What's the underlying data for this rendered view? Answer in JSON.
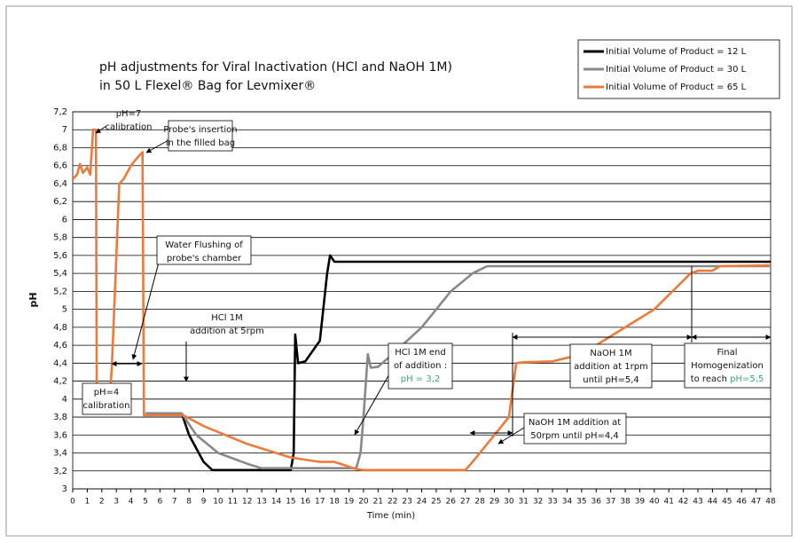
{
  "chart_data": {
    "type": "line",
    "title": [
      "pH adjustments for Viral Inactivation (HCl and NaOH 1M)",
      "in 50 L Flexel® Bag for Levmixer®"
    ],
    "x_label": "Time (min)",
    "y_label": "pH",
    "xlim": [
      0,
      48
    ],
    "xticks": [
      0,
      1,
      2,
      3,
      4,
      5,
      6,
      7,
      8,
      9,
      10,
      11,
      12,
      13,
      14,
      15,
      16,
      17,
      18,
      19,
      20,
      21,
      22,
      23,
      24,
      25,
      26,
      27,
      28,
      29,
      30,
      31,
      32,
      33,
      34,
      35,
      36,
      37,
      38,
      39,
      40,
      41,
      42,
      43,
      44,
      45,
      46,
      47,
      48
    ],
    "ylim": [
      3,
      7.2
    ],
    "yticks": [
      3,
      {
        "value": 3.2,
        "label": "3,2"
      },
      {
        "value": 3.4,
        "label": "3,4"
      },
      {
        "value": 3.6,
        "label": "3,6"
      },
      {
        "value": 3.8,
        "label": "3,8"
      },
      4,
      {
        "value": 4.2,
        "label": "4,2"
      },
      {
        "value": 4.4,
        "label": "4,4"
      },
      {
        "value": 4.6,
        "label": "4,6"
      },
      {
        "value": 4.8,
        "label": "4,8"
      },
      5,
      {
        "value": 5.2,
        "label": "5,2"
      },
      {
        "value": 5.4,
        "label": "5,4"
      },
      {
        "value": 5.6,
        "label": "5,6"
      },
      {
        "value": 5.8,
        "label": "5,8"
      },
      6,
      {
        "value": 6.2,
        "label": "6,2"
      },
      {
        "value": 6.4,
        "label": "6,4"
      },
      {
        "value": 6.6,
        "label": "6,6"
      },
      {
        "value": 6.8,
        "label": "6,8"
      },
      7,
      {
        "value": 7.2,
        "label": "7,2"
      }
    ],
    "grid": true,
    "legend": "top-right",
    "series": [
      {
        "name": "Initial Volume of Product = 12 L",
        "color": "#000000",
        "x": [
          5,
          7.5,
          8,
          9,
          9.6,
          15,
          15.2,
          15.3,
          15.5,
          16,
          17,
          17.5,
          17.7,
          18,
          48
        ],
        "values": [
          3.84,
          3.84,
          3.6,
          3.3,
          3.21,
          3.21,
          3.4,
          4.72,
          4.4,
          4.42,
          4.65,
          5.4,
          5.6,
          5.53,
          5.53
        ]
      },
      {
        "name": "Initial Volume of Product = 30 L",
        "color": "#888888",
        "x": [
          5,
          7.5,
          8.5,
          10,
          12,
          13,
          19.5,
          19.8,
          20,
          20.3,
          20.5,
          21,
          22,
          24,
          26,
          27.5,
          28.5,
          48
        ],
        "values": [
          3.84,
          3.84,
          3.6,
          3.4,
          3.28,
          3.23,
          3.23,
          3.4,
          3.8,
          4.5,
          4.35,
          4.36,
          4.5,
          4.8,
          5.2,
          5.4,
          5.48,
          5.48
        ]
      },
      {
        "name": "Initial Volume of Product = 65 L",
        "color": "#ee7a3a",
        "x": [
          0,
          0.3,
          0.5,
          0.7,
          1,
          1.2,
          1.4,
          1.6,
          1.65,
          2.6,
          2.7,
          3.2,
          3.5,
          4,
          4.5,
          4.8,
          4.9,
          7.6,
          9,
          12,
          15,
          17,
          18,
          19.5,
          20,
          27,
          27.5,
          29,
          30,
          30.5,
          31,
          33,
          35,
          37,
          40,
          42.5,
          43,
          44,
          44.5,
          48
        ],
        "values": [
          6.45,
          6.5,
          6.62,
          6.52,
          6.58,
          6.5,
          7.0,
          7.0,
          4.12,
          4.12,
          4.4,
          6.4,
          6.45,
          6.6,
          6.7,
          6.75,
          3.82,
          3.82,
          3.7,
          3.5,
          3.35,
          3.3,
          3.3,
          3.22,
          3.21,
          3.21,
          3.3,
          3.6,
          3.8,
          4.4,
          4.41,
          4.42,
          4.5,
          4.7,
          5.0,
          5.4,
          5.43,
          5.43,
          5.48,
          5.49
        ]
      }
    ],
    "annotations": [
      {
        "text": [
          "pH=7",
          "calibration"
        ]
      },
      {
        "text": [
          "Probe's insertion",
          "in the filled bag"
        ]
      },
      {
        "text": [
          "Water Flushing of",
          "probe's chamber"
        ]
      },
      {
        "text": [
          "HCl 1M",
          "addition at 5rpm"
        ]
      },
      {
        "text": [
          "pH=4",
          "calibration"
        ]
      },
      {
        "text": [
          "HCl 1M end",
          "of addition :"
        ],
        "highlight": "pH = 3,2"
      },
      {
        "text": [
          "NaOH 1M addition at",
          "50rpm until pH=4,4"
        ]
      },
      {
        "text": [
          "NaOH 1M",
          "addition at 1rpm",
          "until pH=5,4"
        ]
      },
      {
        "text": [
          "Final",
          "Homogenization"
        ],
        "prefix": "to reach",
        "highlight": "pH=5,5"
      }
    ]
  }
}
